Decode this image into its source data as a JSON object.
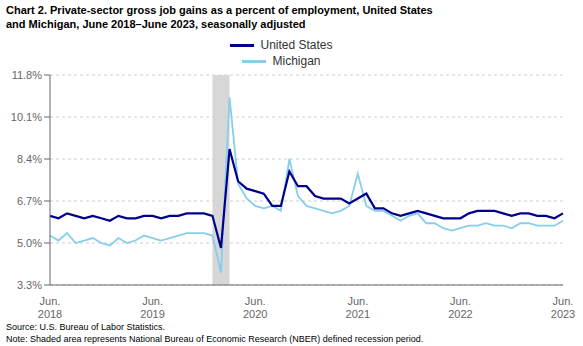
{
  "chart_data": {
    "type": "line",
    "title": "Chart 2. Private-sector gross job gains as a percent of employment, United States\nand Michigan, June 2018–June 2023, seasonally adjusted",
    "source_note": "Source: U.S. Bureau of Labor Statistics.\nNote: Shaded area represents National Bureau of Economic Research (NBER) defined recession period.",
    "categories": [
      "Jun.\n2018",
      null,
      null,
      null,
      null,
      null,
      null,
      null,
      null,
      null,
      null,
      null,
      "Jun.\n2019",
      null,
      null,
      null,
      null,
      null,
      null,
      null,
      null,
      null,
      null,
      null,
      "Jun.\n2020",
      null,
      null,
      null,
      null,
      null,
      null,
      null,
      null,
      null,
      null,
      null,
      "Jun.\n2021",
      null,
      null,
      null,
      null,
      null,
      null,
      null,
      null,
      null,
      null,
      null,
      "Jun.\n2022",
      null,
      null,
      null,
      null,
      null,
      null,
      null,
      null,
      null,
      null,
      null,
      "Jun.\n2023"
    ],
    "series": [
      {
        "name": "United States",
        "color": "#00008B",
        "values": [
          6.1,
          6.0,
          6.2,
          6.1,
          6.0,
          6.1,
          6.0,
          5.9,
          6.1,
          6.0,
          6.0,
          6.1,
          6.1,
          6.0,
          6.1,
          6.1,
          6.2,
          6.2,
          6.2,
          6.1,
          4.8,
          8.8,
          7.5,
          7.2,
          7.1,
          7.0,
          6.5,
          6.5,
          7.9,
          7.3,
          7.3,
          6.9,
          6.8,
          6.8,
          6.8,
          6.6,
          6.8,
          7.0,
          6.4,
          6.4,
          6.2,
          6.1,
          6.2,
          6.3,
          6.2,
          6.1,
          6.0,
          6.0,
          6.0,
          6.2,
          6.3,
          6.3,
          6.3,
          6.2,
          6.1,
          6.2,
          6.2,
          6.1,
          6.1,
          6.0,
          6.2
        ]
      },
      {
        "name": "Michigan",
        "color": "#87CEEB",
        "values": [
          5.3,
          5.1,
          5.4,
          5.0,
          5.1,
          5.2,
          5.0,
          4.9,
          5.2,
          5.0,
          5.1,
          5.3,
          5.2,
          5.1,
          5.2,
          5.3,
          5.4,
          5.4,
          5.4,
          5.3,
          3.8,
          10.9,
          7.4,
          6.8,
          6.5,
          6.4,
          6.5,
          6.3,
          8.4,
          6.9,
          6.5,
          6.4,
          6.3,
          6.2,
          6.3,
          6.5,
          7.8,
          6.5,
          6.3,
          6.3,
          6.1,
          5.9,
          6.1,
          6.2,
          5.8,
          5.8,
          5.6,
          5.5,
          5.6,
          5.7,
          5.7,
          5.8,
          5.7,
          5.7,
          5.6,
          5.8,
          5.8,
          5.7,
          5.7,
          5.7,
          5.9
        ]
      }
    ],
    "shaded_span": {
      "start": 19,
      "end": 21,
      "color": "#D3D3D3"
    },
    "ylim": [
      3.3,
      11.8
    ],
    "yticks": [
      {
        "value": 3.3,
        "label": "3.3%"
      },
      {
        "value": 5.0,
        "label": "5.0%"
      },
      {
        "value": 6.7,
        "label": "6.7%"
      },
      {
        "value": 8.4,
        "label": "8.4%"
      },
      {
        "value": 10.1,
        "label": "10.1%"
      },
      {
        "value": 11.8,
        "label": "11.8%"
      }
    ],
    "grid": true,
    "legend": "top"
  }
}
